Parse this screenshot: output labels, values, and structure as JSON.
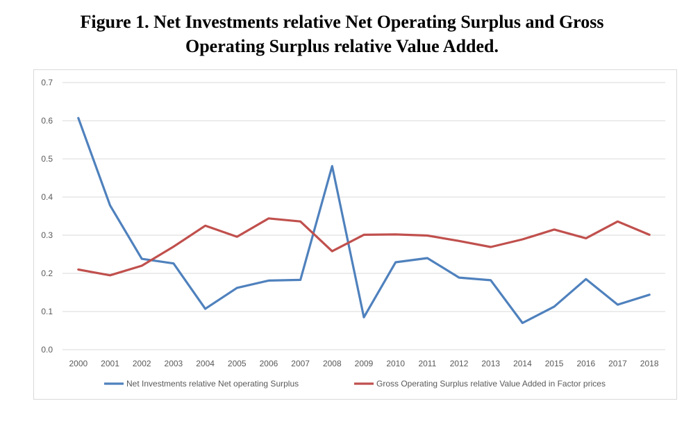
{
  "title_line1": "Figure 1. Net Investments relative Net Operating Surplus and Gross",
  "title_line2": "Operating Surplus relative Value Added.",
  "chart_data": {
    "type": "line",
    "x": [
      2000,
      2001,
      2002,
      2003,
      2004,
      2005,
      2006,
      2007,
      2008,
      2009,
      2010,
      2011,
      2012,
      2013,
      2014,
      2015,
      2016,
      2017,
      2018
    ],
    "ylim": [
      0,
      0.7
    ],
    "yticks": [
      "0.0",
      "0.1",
      "0.2",
      "0.3",
      "0.4",
      "0.5",
      "0.6",
      "0.7"
    ],
    "grid": true,
    "legend_position": "bottom",
    "series": [
      {
        "name": "Net Investments relative Net operating Surplus",
        "color": "#4f81bd",
        "values": [
          0.607,
          0.378,
          0.238,
          0.226,
          0.107,
          0.162,
          0.181,
          0.183,
          0.481,
          0.085,
          0.229,
          0.24,
          0.189,
          0.182,
          0.07,
          0.113,
          0.185,
          0.118,
          0.144
        ]
      },
      {
        "name": "Gross Operating Surplus relative Value Added in Factor prices",
        "color": "#c0504d",
        "values": [
          0.21,
          0.195,
          0.22,
          0.27,
          0.325,
          0.296,
          0.344,
          0.336,
          0.258,
          0.301,
          0.302,
          0.299,
          0.285,
          0.269,
          0.289,
          0.315,
          0.292,
          0.336,
          0.301
        ]
      }
    ]
  }
}
